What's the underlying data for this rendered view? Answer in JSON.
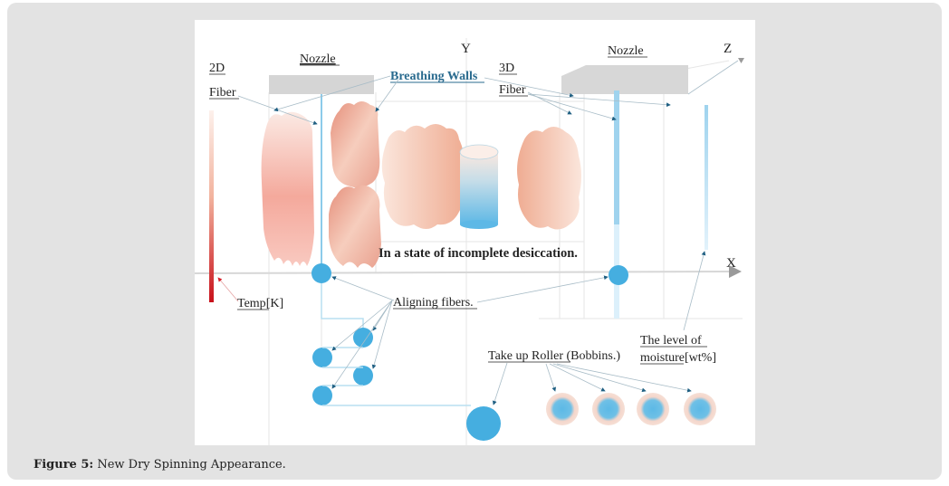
{
  "caption": {
    "label": "Figure 5:",
    "text": " New Dry Spinning Appearance."
  },
  "diagram": {
    "axes": {
      "x": "X",
      "y": "Y",
      "z": "Z"
    },
    "labels": {
      "nozzle_left": "Nozzle",
      "nozzle_right": "Nozzle",
      "fiber_2d_line1": "2D",
      "fiber_2d_line2": "Fiber",
      "fiber_3d_line1": "3D",
      "fiber_3d_line2": "Fiber",
      "breathing_walls": "Breathing Walls",
      "incomplete_desiccation": "In a state of incomplete desiccation.",
      "temp": "Temp",
      "temp_unit": "[K]",
      "aligning_fibers": "Aligning fibers.",
      "take_up_roller": "Take up Roller",
      "bobbins": " (Bobbins.)",
      "moisture_line1": "The level of",
      "moisture_line2": "moisture",
      "moisture_unit": "[wt%]"
    },
    "colors": {
      "fiber_blue": "#45aee0",
      "arrow": "#1f5f82",
      "breathing_walls_text": "#2a6b8f",
      "nozzle_gray": "#d5d5d5",
      "temp_hot": "#c8101a",
      "temp_cool": "#fbe6e0"
    },
    "bobbin_count": 4
  }
}
